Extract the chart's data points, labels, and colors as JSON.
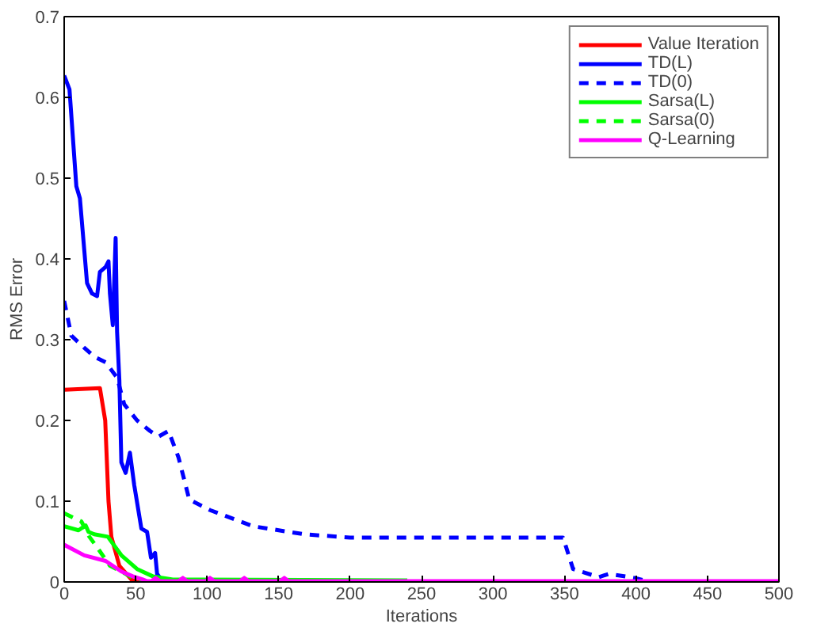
{
  "chart_data": {
    "type": "line",
    "xlabel": "Iterations",
    "ylabel": "RMS Error",
    "xlim": [
      0,
      500
    ],
    "ylim": [
      0,
      0.7
    ],
    "xticks": [
      0,
      50,
      100,
      150,
      200,
      250,
      300,
      350,
      400,
      450,
      500
    ],
    "yticks": [
      0,
      {
        "value": 0.1,
        "label": "0.1"
      },
      {
        "value": 0.2,
        "label": "0.2"
      },
      {
        "value": 0.3,
        "label": "0.3"
      },
      {
        "value": 0.4,
        "label": "0.4"
      },
      {
        "value": 0.5,
        "label": "0.5"
      },
      {
        "value": 0.6,
        "label": "0.6"
      },
      {
        "value": 0.7,
        "label": "0.7"
      }
    ],
    "grid": false,
    "legend": "top right",
    "series": [
      {
        "name": "Value Iteration",
        "color": "#ff0000",
        "line_style": "solid",
        "x": [
          0,
          25,
          28.7,
          31,
          33,
          38.6,
          47,
          51,
          60
        ],
        "values": [
          0.238,
          0.24,
          0.2,
          0.1,
          0.056,
          0.02,
          0.003,
          0,
          0
        ]
      },
      {
        "name": "TD(L)",
        "color": "#0000ff",
        "line_style": "solid",
        "x": [
          0,
          3.7,
          8.5,
          11,
          16,
          19.5,
          23,
          25,
          29,
          31,
          32,
          34,
          36,
          37,
          38.6,
          40,
          43,
          46,
          49,
          54,
          58,
          60.7,
          63.6,
          65,
          69,
          500
        ],
        "values": [
          0.627,
          0.61,
          0.49,
          0.475,
          0.37,
          0.357,
          0.354,
          0.384,
          0.39,
          0.397,
          0.357,
          0.318,
          0.426,
          0.31,
          0.25,
          0.148,
          0.135,
          0.16,
          0.12,
          0.066,
          0.062,
          0.03,
          0.036,
          0.01,
          0,
          0
        ]
      },
      {
        "name": "TD(0)",
        "color": "#0000ff",
        "line_style": "dashed",
        "x": [
          0,
          5,
          14,
          21,
          29,
          37,
          42,
          51,
          60,
          66,
          73,
          80,
          87.5,
          102,
          132,
          168,
          200,
          349,
          356,
          374,
          381,
          399,
          410,
          500
        ],
        "values": [
          0.348,
          0.305,
          0.29,
          0.279,
          0.272,
          0.253,
          0.22,
          0.2,
          0.187,
          0.18,
          0.187,
          0.154,
          0.102,
          0.089,
          0.069,
          0.059,
          0.055,
          0.055,
          0.016,
          0.006,
          0.01,
          0.005,
          0,
          0
        ]
      },
      {
        "name": "Sarsa(L)",
        "color": "#00ff00",
        "line_style": "solid",
        "x": [
          0,
          10,
          15,
          17,
          21,
          30.5,
          40,
          51,
          62,
          76,
          240
        ],
        "values": [
          0.069,
          0.064,
          0.07,
          0.062,
          0.059,
          0.056,
          0.033,
          0.016,
          0.007,
          0.003,
          0.002
        ]
      },
      {
        "name": "Sarsa(0)",
        "color": "#00ff00",
        "line_style": "dashed",
        "x": [
          0,
          12,
          17.6,
          23,
          32,
          40,
          48,
          58,
          80
        ],
        "values": [
          0.085,
          0.075,
          0.056,
          0.043,
          0.02,
          0.013,
          0.005,
          0,
          0
        ]
      },
      {
        "name": "Q-Learning",
        "color": "#ff00ff",
        "line_style": "solid",
        "x": [
          0,
          14,
          29,
          40,
          48,
          55,
          58,
          61,
          64,
          67,
          80,
          83,
          86,
          99,
          102,
          105,
          123,
          126,
          129,
          151,
          154,
          157,
          500
        ],
        "values": [
          0.046,
          0.033,
          0.026,
          0.013,
          0.007,
          0.003,
          0.001,
          0.001,
          0.005,
          0.001,
          0.001,
          0.005,
          0.001,
          0.001,
          0.005,
          0.001,
          0.001,
          0.005,
          0.001,
          0.001,
          0.005,
          0.001,
          0.001
        ]
      }
    ]
  }
}
